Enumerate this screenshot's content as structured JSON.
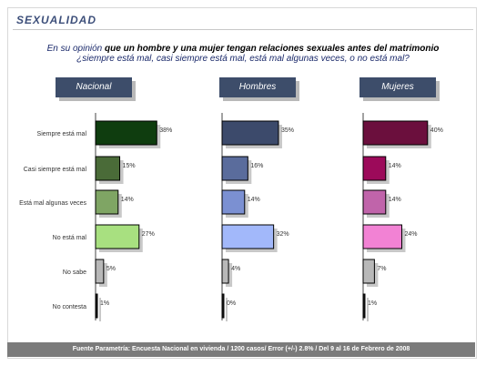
{
  "title": "SEXUALIDAD",
  "question_line1_prefix": "En su opinión",
  "question_line1_bold": " que un hombre y una mujer tengan relaciones sexuales antes del matrimonio",
  "question_line2": "¿siempre está mal, casi siempre está mal, está mal algunas veces, o no está mal?",
  "footer": "Fuente Parametría: Encuesta Nacional en vivienda / 1200 casos/ Error (+/-) 2.8% / Del 9 al 16 de Febrero de 2008",
  "chart_data": {
    "type": "bar",
    "orientation": "horizontal",
    "categories": [
      "Siempre está mal",
      "Casi siempre está mal",
      "Está mal algunas veces",
      "No está mal",
      "No sabe",
      "No contesta"
    ],
    "series": [
      {
        "name": "Nacional",
        "values": [
          38,
          15,
          14,
          27,
          5,
          1
        ],
        "labels": [
          "38%",
          "15%",
          "14%",
          "27%",
          "5%",
          "1%"
        ],
        "colors": [
          "#0f3d0f",
          "#4a6b38",
          "#7fa564",
          "#a8e080",
          "#b8b8b8",
          "#1a1a1a"
        ]
      },
      {
        "name": "Hombres",
        "values": [
          35,
          16,
          14,
          32,
          4,
          0
        ],
        "labels": [
          "35%",
          "16%",
          "14%",
          "32%",
          "4%",
          "0%"
        ],
        "colors": [
          "#3c4a6b",
          "#5a6c9c",
          "#7b90d2",
          "#a2b8fa",
          "#b8b8b8",
          "#1a1a1a"
        ]
      },
      {
        "name": "Mujeres",
        "values": [
          40,
          14,
          14,
          24,
          7,
          1
        ],
        "labels": [
          "40%",
          "14%",
          "14%",
          "24%",
          "7%",
          "1%"
        ],
        "colors": [
          "#6b0f3d",
          "#9c0a5a",
          "#c064aa",
          "#f282d4",
          "#b8b8b8",
          "#1a1a1a"
        ]
      }
    ],
    "xlim": [
      0,
      45
    ]
  }
}
